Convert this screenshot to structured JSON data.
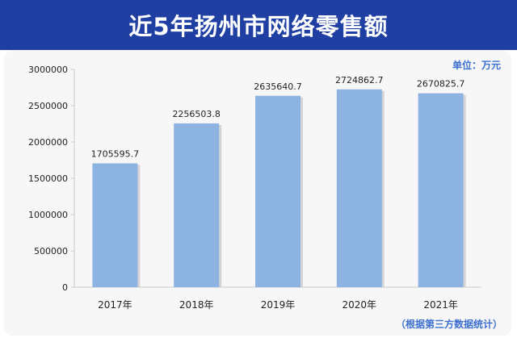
{
  "header": {
    "title": "近5年扬州市网络零售额"
  },
  "unit_label": "单位：万元",
  "source_note": "（根据第三方数据统计）",
  "colors": {
    "header_bg": "#1f3fa3",
    "bar": "#8db3e2",
    "accent_text": "#3d6fd0"
  },
  "chart_data": {
    "type": "bar",
    "categories": [
      "2017年",
      "2018年",
      "2019年",
      "2020年",
      "2021年"
    ],
    "values": [
      1705595.7,
      2256503.8,
      2635640.7,
      2724862.7,
      2670825.7
    ],
    "data_labels": [
      "1705595.7",
      "2256503.8",
      "2635640.7",
      "2724862.7",
      "2670825.7"
    ],
    "title": "近5年扬州市网络零售额",
    "ylim": [
      0,
      3000000
    ],
    "yticks": [
      0,
      500000,
      1000000,
      1500000,
      2000000,
      2500000,
      3000000
    ],
    "ytick_labels": [
      "0",
      "500000",
      "1000000",
      "1500000",
      "2000000",
      "2500000",
      "3000000"
    ],
    "grid": false,
    "legend": "none"
  }
}
